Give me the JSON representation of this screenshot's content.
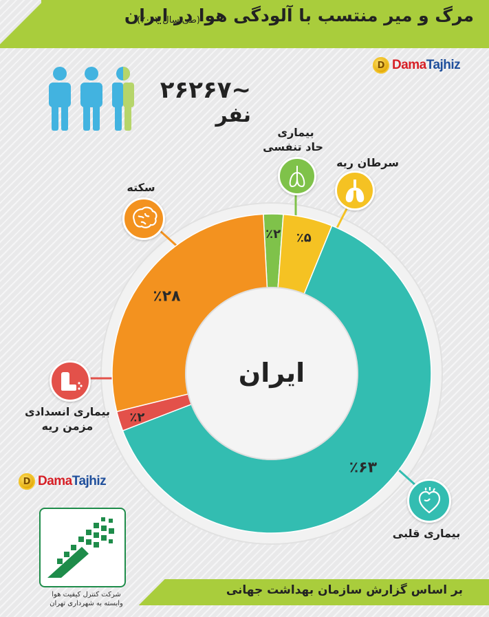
{
  "title": "مرگ و میر منتسب با آلودگی هوا در ایران",
  "subtitle": "(طی سال ۲۰۱۲)",
  "brand": {
    "prefix": "Dama",
    "suffix": "Tajhiz",
    "coin_letter": "D"
  },
  "deaths": {
    "number": "~۲۶۲۶۷",
    "unit": "نفر"
  },
  "center_label": "ایران",
  "footer": "بر اساس گزارش سازمان بهداشت جهانی",
  "org": {
    "line1": "شرکت کنترل کیفیت هوا",
    "line2": "وابسته به شهرداری تهران"
  },
  "colors": {
    "heart": "#33bdb1",
    "stroke": "#f3921f",
    "copd": "#e3514a",
    "acute": "#7fc24a",
    "lung": "#f5c223",
    "title_bar": "#a9cd3c",
    "people": "#42b3e0"
  },
  "chart_data": {
    "type": "pie",
    "categories": [
      "بیماری حاد تنفسی",
      "سرطان ریه",
      "بیماری قلبی",
      "بیماری انسدادی مزمن ریه",
      "سکته"
    ],
    "values": [
      2,
      5,
      63,
      2,
      28
    ],
    "value_labels": [
      "٪۲",
      "٪۵",
      "٪۶۳",
      "٪۲",
      "٪۲۸"
    ]
  },
  "labels": {
    "acute": [
      "بیماری",
      "حاد تنفسی"
    ],
    "lung": [
      "سرطان ریه"
    ],
    "stroke": [
      "سکته"
    ],
    "copd": [
      "بیماری انسدادی",
      "مزمن ریه"
    ],
    "heart": [
      "بیماری قلبی"
    ]
  },
  "icons": {
    "acute": "lungs-icon",
    "lung": "lungs-icon",
    "stroke": "brain-icon",
    "copd": "inhaler-icon",
    "heart": "heart-icon",
    "people": "people-icon",
    "coin": "coin-icon",
    "org_logo": "pixel-logo-icon"
  }
}
